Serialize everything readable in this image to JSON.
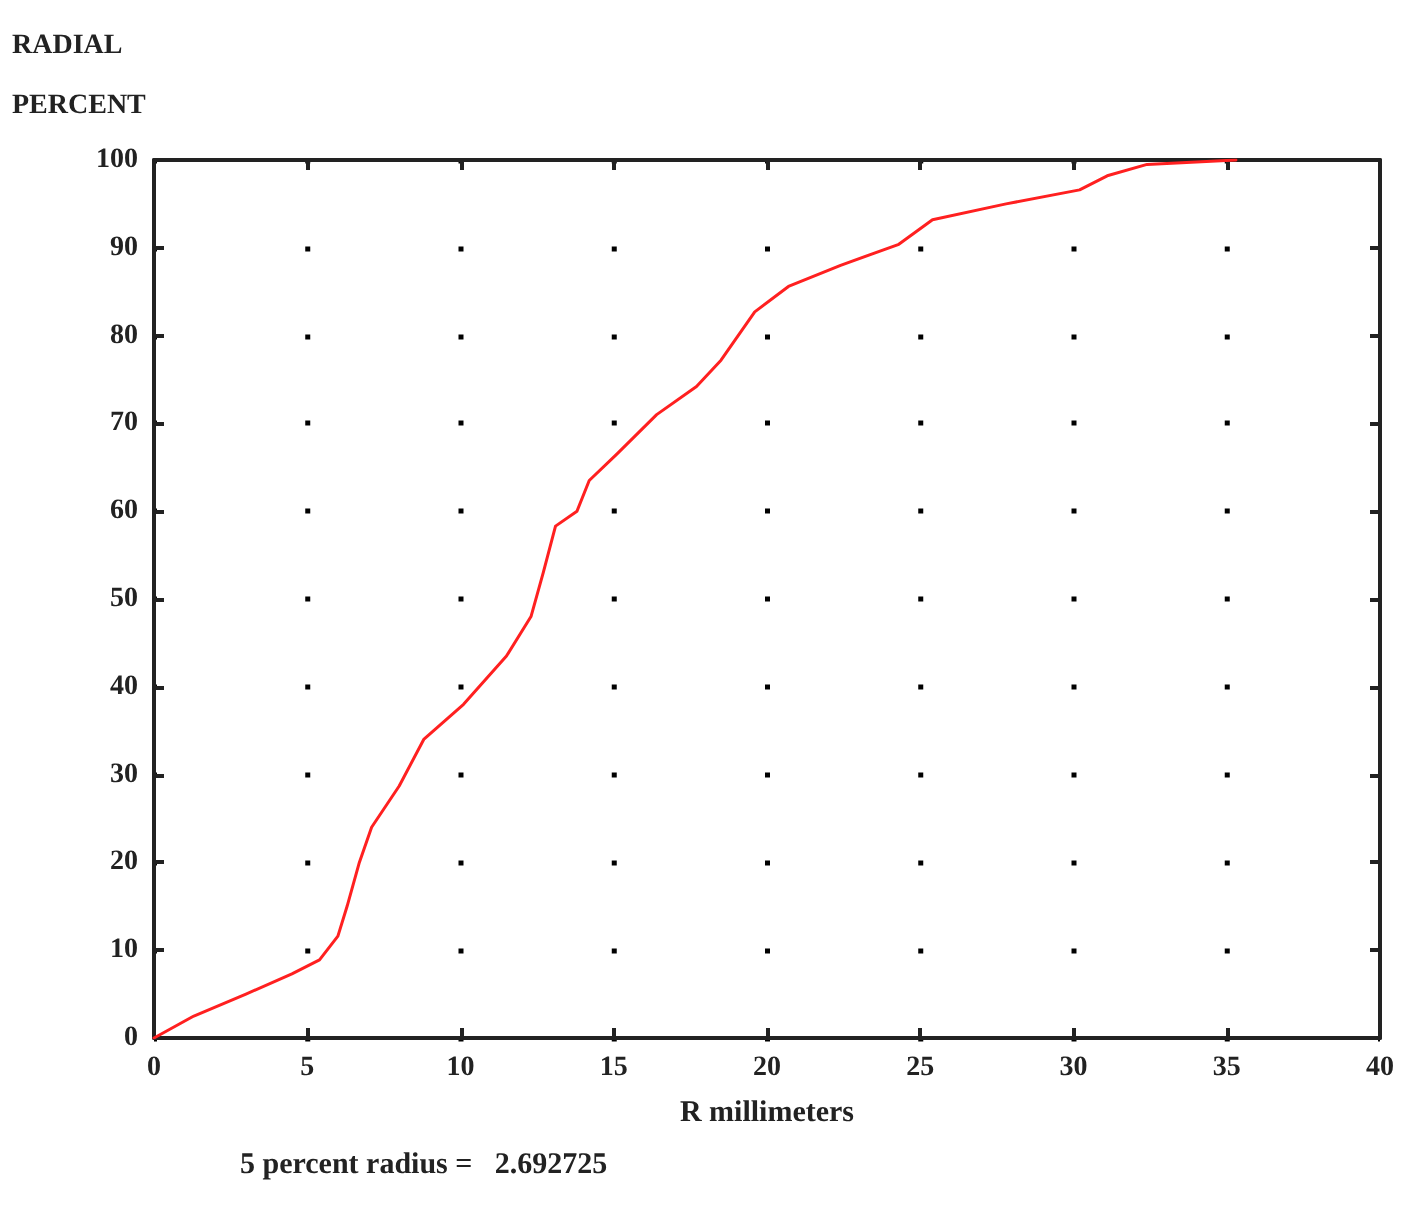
{
  "chart_data": {
    "type": "line",
    "xlabel": "R millimeters",
    "ylabel": "RADIAL PERCENT",
    "annotations": [
      "5 percent radius =   2.692725"
    ],
    "series": [
      {
        "color": "#ff2020",
        "x": [
          0,
          1.3,
          3,
          4.5,
          5.4,
          6.0,
          6.3,
          6.7,
          7.1,
          8.0,
          8.8,
          10.1,
          11.5,
          12.3,
          12.7,
          13.1,
          13.8,
          14.2,
          15.1,
          16.4,
          17.7,
          18.5,
          19.6,
          20.7,
          22.4,
          24.3,
          25.4,
          27.8,
          30.2,
          31.1,
          32.4,
          35.3
        ],
        "values": [
          0,
          2.5,
          5,
          7.3,
          8.9,
          11.6,
          15,
          20,
          24,
          28.7,
          34,
          38,
          43.5,
          48,
          53,
          58.3,
          60,
          63.5,
          66.5,
          71,
          74.2,
          77.2,
          82.7,
          85.6,
          88,
          90.4,
          93.2,
          95,
          96.6,
          98.2,
          99.5,
          100
        ]
      }
    ],
    "xlim": [
      0,
      40
    ],
    "xticks": [
      0,
      5,
      10,
      15,
      20,
      25,
      30,
      35,
      40
    ],
    "ylim": [
      0,
      100
    ],
    "yticks": [
      0,
      10,
      20,
      30,
      40,
      50,
      60,
      70,
      80,
      90,
      100
    ],
    "grid": true,
    "marker": "none",
    "line_style": "solid"
  }
}
